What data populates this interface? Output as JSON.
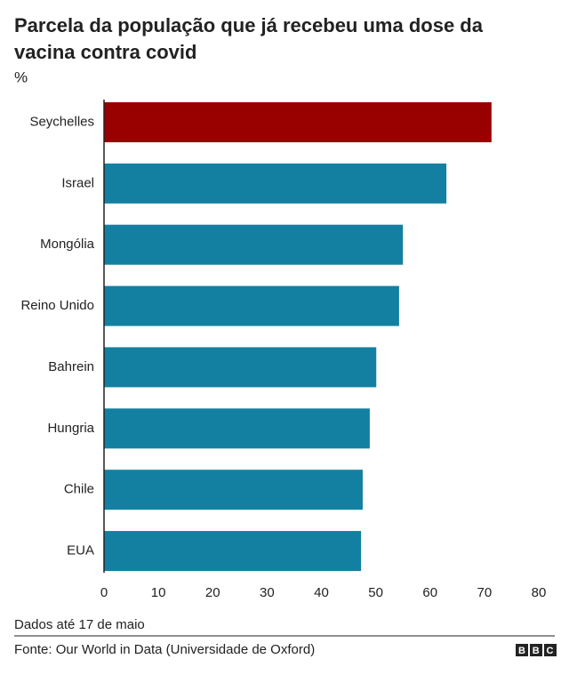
{
  "chart_data": {
    "type": "bar",
    "orientation": "horizontal",
    "title": "Parcela da população que já recebeu uma dose da vacina contra covid",
    "subtitle": "%",
    "categories": [
      "Seychelles",
      "Israel",
      "Mongólia",
      "Reino Unido",
      "Bahrein",
      "Hungria",
      "Chile",
      "EUA"
    ],
    "values": [
      71.3,
      63.0,
      55.0,
      54.3,
      50.1,
      48.9,
      47.6,
      47.3
    ],
    "colors": [
      "#990000",
      "#1380a1",
      "#1380a1",
      "#1380a1",
      "#1380a1",
      "#1380a1",
      "#1380a1",
      "#1380a1"
    ],
    "xlim": [
      0,
      80
    ],
    "xticks": [
      0,
      10,
      20,
      30,
      40,
      50,
      60,
      70,
      80
    ],
    "note": "Dados até 17 de maio",
    "source": "Fonte: Our World in Data (Universidade de Oxford)",
    "logo": "BBC"
  }
}
